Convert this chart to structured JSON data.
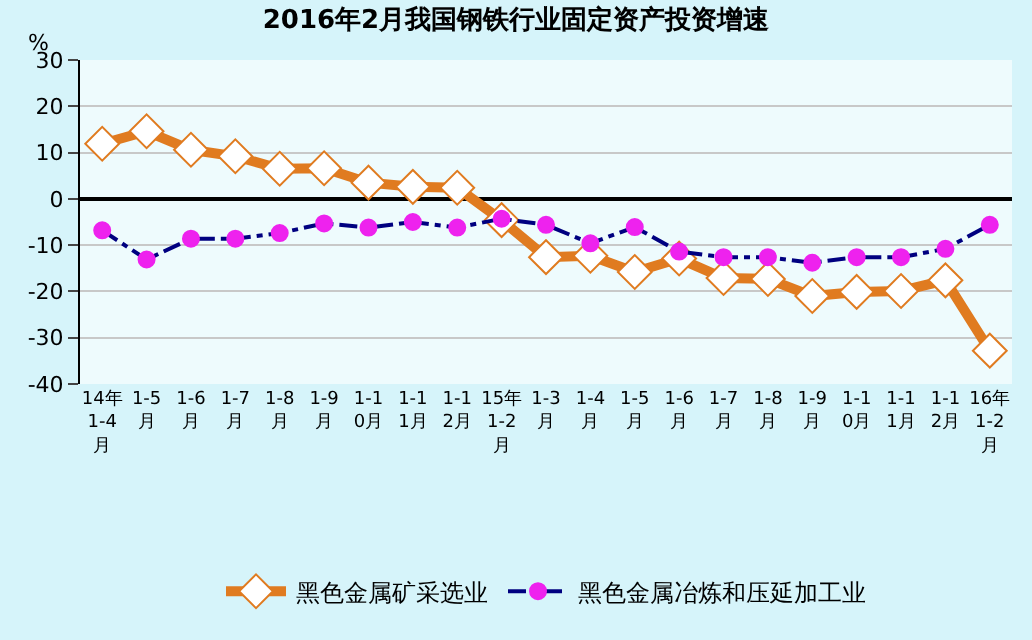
{
  "chart_data": {
    "type": "line",
    "title": "2016年2月我国钢铁行业固定资产投资增速",
    "ylabel": "%",
    "categories": [
      "14年1-4月",
      "1-5月",
      "1-6月",
      "1-7月",
      "1-8月",
      "1-9月",
      "1-10月",
      "1-11月",
      "1-12月",
      "15年1-2月",
      "1-3月",
      "1-4月",
      "1-5月",
      "1-6月",
      "1-7月",
      "1-8月",
      "1-9月",
      "1-10月",
      "1-11月",
      "1-12月",
      "16年1-2月"
    ],
    "series": [
      {
        "name": "黑色金属矿采选业",
        "color": "#e07b20",
        "marker": "diamond",
        "line_style": "solid",
        "values": [
          11.9,
          14.6,
          10.6,
          9.2,
          6.5,
          6.6,
          3.5,
          2.6,
          2.4,
          -4.6,
          -12.6,
          -12.3,
          -15.8,
          -12.9,
          -17.1,
          -17.3,
          -21,
          -20.1,
          -19.9,
          -17.6,
          -32.8
        ]
      },
      {
        "name": "黑色金属冶炼和压延加工业",
        "color": "#000080",
        "marker": "circle",
        "line_style": "dashed",
        "values": [
          -6.8,
          -13.1,
          -8.6,
          -8.6,
          -7.4,
          -5.3,
          -6.2,
          -5,
          -6.2,
          -4.3,
          -5.6,
          -9.6,
          -6.1,
          -11.4,
          -12.6,
          -12.6,
          -13.8,
          -12.6,
          -12.6,
          -10.8,
          -5.6
        ]
      }
    ],
    "ylim": [
      -40,
      30
    ],
    "yticks": [
      -40,
      -30,
      -20,
      -10,
      0,
      10,
      20,
      30
    ],
    "grid": "y",
    "legend": "bottom"
  }
}
